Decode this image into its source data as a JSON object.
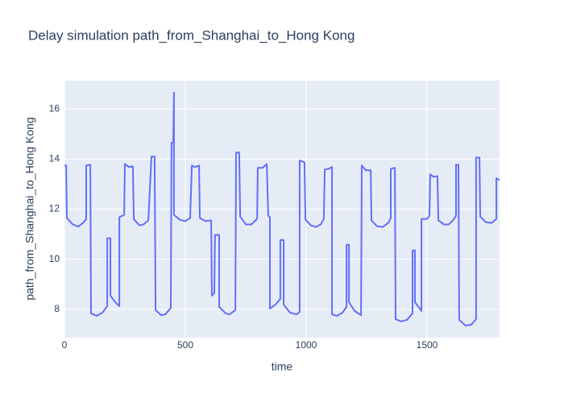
{
  "chart_data": {
    "type": "line",
    "title": "Delay simulation path_from_Shanghai_to_Hong Kong",
    "x_label": "time",
    "y_label": "path_from_Shanghai_to_Hong Kong",
    "xlim": [
      0,
      1800
    ],
    "ylim": [
      6.87,
      17.13
    ],
    "xticks": [
      0,
      500,
      1000,
      1500
    ],
    "yticks": [
      8,
      10,
      12,
      14,
      16
    ],
    "grid": true,
    "series": [
      {
        "name": "path_from_Shanghai_to_Hong Kong",
        "color": "#636efa",
        "x": [
          0,
          7,
          10,
          33,
          57,
          77,
          90,
          90,
          107,
          110,
          133,
          157,
          177,
          177,
          190,
          190,
          210,
          227,
          227,
          247,
          250,
          267,
          283,
          287,
          310,
          327,
          347,
          360,
          373,
          377,
          400,
          417,
          440,
          443,
          450,
          453,
          453,
          477,
          500,
          520,
          527,
          540,
          557,
          560,
          583,
          607,
          610,
          620,
          623,
          640,
          640,
          667,
          683,
          707,
          710,
          723,
          727,
          750,
          773,
          797,
          800,
          820,
          837,
          843,
          850,
          850,
          873,
          893,
          893,
          907,
          907,
          933,
          960,
          973,
          973,
          993,
          997,
          1020,
          1040,
          1060,
          1073,
          1077,
          1093,
          1107,
          1107,
          1127,
          1150,
          1167,
          1167,
          1177,
          1177,
          1200,
          1227,
          1230,
          1247,
          1267,
          1270,
          1293,
          1317,
          1340,
          1350,
          1350,
          1367,
          1370,
          1393,
          1417,
          1440,
          1440,
          1450,
          1450,
          1477,
          1477,
          1500,
          1510,
          1513,
          1527,
          1543,
          1547,
          1570,
          1590,
          1607,
          1620,
          1620,
          1630,
          1633,
          1660,
          1683,
          1703,
          1703,
          1717,
          1720,
          1743,
          1767,
          1787,
          1787,
          1800
        ],
        "values": [
          13.74,
          13.74,
          11.65,
          11.4,
          11.3,
          11.45,
          11.6,
          13.74,
          13.77,
          7.84,
          7.74,
          7.87,
          8.13,
          10.84,
          10.84,
          8.55,
          8.29,
          8.13,
          11.68,
          11.77,
          13.8,
          13.68,
          13.71,
          11.6,
          11.35,
          11.39,
          11.55,
          14.1,
          14.1,
          7.97,
          7.77,
          7.8,
          8.06,
          14.65,
          14.65,
          16.65,
          11.77,
          11.58,
          11.52,
          11.65,
          13.74,
          13.68,
          13.74,
          11.65,
          11.52,
          11.55,
          8.55,
          8.65,
          10.97,
          10.97,
          8.1,
          7.84,
          7.8,
          7.97,
          14.26,
          14.26,
          11.71,
          11.39,
          11.39,
          11.61,
          13.65,
          13.65,
          13.8,
          11.74,
          11.68,
          8.03,
          8.19,
          8.42,
          10.77,
          10.77,
          8.19,
          7.87,
          7.8,
          7.9,
          13.94,
          13.87,
          11.58,
          11.35,
          11.29,
          11.39,
          11.61,
          13.58,
          13.61,
          13.68,
          7.8,
          7.74,
          7.87,
          8.1,
          10.58,
          10.58,
          8.29,
          7.94,
          7.77,
          13.74,
          13.55,
          13.55,
          11.55,
          11.32,
          11.29,
          11.45,
          11.65,
          13.61,
          13.65,
          7.61,
          7.52,
          7.58,
          7.84,
          10.35,
          10.35,
          8.29,
          7.94,
          11.61,
          11.61,
          11.74,
          13.39,
          13.29,
          13.32,
          11.55,
          11.39,
          11.39,
          11.55,
          11.74,
          13.77,
          13.77,
          7.58,
          7.35,
          7.39,
          7.61,
          14.06,
          14.06,
          11.71,
          11.48,
          11.45,
          11.61,
          13.23,
          13.16
        ]
      }
    ]
  }
}
